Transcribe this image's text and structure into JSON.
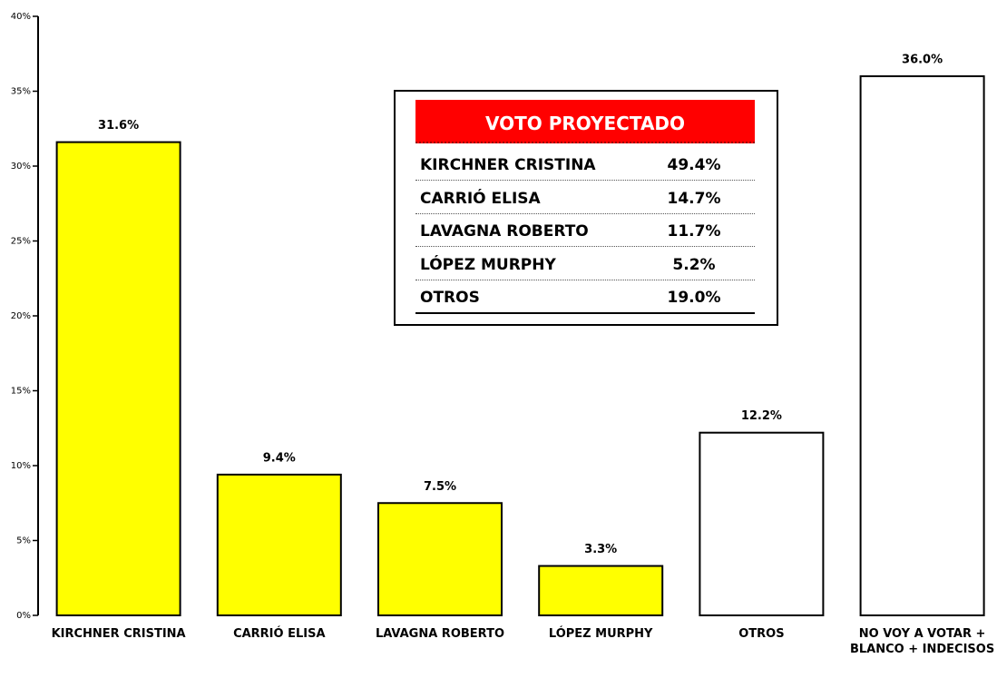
{
  "chart_data": {
    "type": "bar",
    "categories": [
      "KIRCHNER CRISTINA",
      "CARRIÓ ELISA",
      "LAVAGNA ROBERTO",
      "LÓPEZ MURPHY",
      "OTROS",
      "NO VOY A VOTAR + BLANCO + INDECISOS"
    ],
    "values": [
      31.6,
      9.4,
      7.5,
      3.3,
      12.2,
      36.0
    ],
    "value_labels": [
      "31.6%",
      "9.4%",
      "7.5%",
      "3.3%",
      "12.2%",
      "36.0%"
    ],
    "colors": [
      "#ffff00",
      "#ffff00",
      "#ffff00",
      "#ffff00",
      "#ffffff",
      "#ffffff"
    ],
    "ylim": [
      0,
      40
    ],
    "yticks": [
      {
        "value": 0,
        "label": "0%"
      },
      {
        "value": 5,
        "label": "5%"
      },
      {
        "value": 10,
        "label": "10%"
      },
      {
        "value": 15,
        "label": "15%"
      },
      {
        "value": 20,
        "label": "20%"
      },
      {
        "value": 25,
        "label": "25%"
      },
      {
        "value": 30,
        "label": "30%"
      },
      {
        "value": 35,
        "label": "35%"
      },
      {
        "value": 40,
        "label": "40%"
      }
    ],
    "inset": {
      "title": "VOTO PROYECTADO",
      "rows": [
        [
          "KIRCHNER CRISTINA",
          "49.4%"
        ],
        [
          "CARRIÓ ELISA",
          "14.7%"
        ],
        [
          "LAVAGNA ROBERTO",
          "11.7%"
        ],
        [
          "LÓPEZ MURPHY",
          "5.2%"
        ],
        [
          "OTROS",
          "19.0%"
        ]
      ]
    }
  }
}
